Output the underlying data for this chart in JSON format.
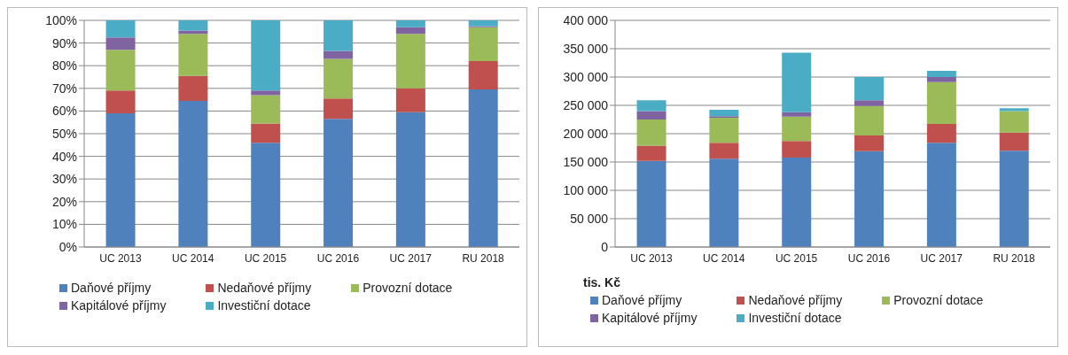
{
  "chart_data": [
    {
      "type": "bar",
      "stacked": true,
      "categories": [
        "UC 2013",
        "UC 2014",
        "UC 2015",
        "UC 2016",
        "UC 2017",
        "RU 2018"
      ],
      "ylim": [
        0,
        100
      ],
      "yticks": [
        {
          "value": 0,
          "label": "0%"
        },
        {
          "value": 10,
          "label": "10%"
        },
        {
          "value": 20,
          "label": "20%"
        },
        {
          "value": 30,
          "label": "30%"
        },
        {
          "value": 40,
          "label": "40%"
        },
        {
          "value": 50,
          "label": "50%"
        },
        {
          "value": 60,
          "label": "60%"
        },
        {
          "value": 70,
          "label": "70%"
        },
        {
          "value": 80,
          "label": "80%"
        },
        {
          "value": 90,
          "label": "90%"
        },
        {
          "value": 100,
          "label": "100%"
        }
      ],
      "grid": "y",
      "legend": "bottom",
      "series": [
        {
          "name": "Daňové příjmy",
          "color": "#4f81bd",
          "values": [
            59,
            64.5,
            46,
            56.5,
            59.5,
            69.5
          ]
        },
        {
          "name": "Nedaňové příjmy",
          "color": "#c0504d",
          "values": [
            10,
            11,
            8.5,
            9,
            10.5,
            12.5
          ]
        },
        {
          "name": "Provozní dotace",
          "color": "#9bbb59",
          "values": [
            18,
            18.5,
            12.5,
            17.5,
            24,
            15
          ]
        },
        {
          "name": "Kapitálové příjmy",
          "color": "#8064a2",
          "values": [
            5.5,
            1.5,
            2,
            3.5,
            3,
            0.5
          ]
        },
        {
          "name": "Investiční dotace",
          "color": "#4bacc6",
          "values": [
            7.5,
            4.5,
            31,
            13.5,
            3,
            2.5
          ]
        }
      ]
    },
    {
      "type": "bar",
      "stacked": true,
      "ylabel": "tis. Kč",
      "categories": [
        "UC 2013",
        "UC 2014",
        "UC 2015",
        "UC 2016",
        "UC 2017",
        "RU 2018"
      ],
      "ylim": [
        0,
        400000
      ],
      "yticks": [
        0,
        {
          "value": 50000,
          "label": "50 000"
        },
        {
          "value": 100000,
          "label": "100 000"
        },
        {
          "value": 150000,
          "label": "150 000"
        },
        {
          "value": 200000,
          "label": "200 000"
        },
        {
          "value": 250000,
          "label": "250 000"
        },
        {
          "value": 300000,
          "label": "300 000"
        },
        {
          "value": 350000,
          "label": "350 000"
        },
        {
          "value": 400000,
          "label": "400 000"
        }
      ],
      "grid": "y",
      "legend": "bottom",
      "series": [
        {
          "name": "Daňové příjmy",
          "color": "#4f81bd",
          "values": [
            152000,
            156000,
            158000,
            169000,
            184000,
            170000
          ]
        },
        {
          "name": "Nedaňové příjmy",
          "color": "#c0504d",
          "values": [
            27000,
            28000,
            29000,
            28000,
            33000,
            32000
          ]
        },
        {
          "name": "Provozní dotace",
          "color": "#9bbb59",
          "values": [
            46000,
            44000,
            43000,
            52000,
            74000,
            38000
          ]
        },
        {
          "name": "Kapitálové příjmy",
          "color": "#8064a2",
          "values": [
            15000,
            3000,
            8000,
            10000,
            9000,
            null
          ]
        },
        {
          "name": "Investiční dotace",
          "color": "#4bacc6",
          "values": [
            19000,
            11000,
            105000,
            41000,
            11000,
            5000
          ]
        }
      ]
    }
  ]
}
